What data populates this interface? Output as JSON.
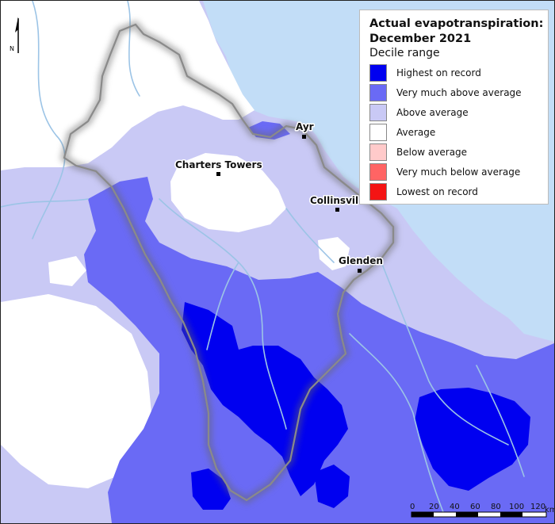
{
  "map": {
    "title_line1": "Actual evapotranspiration:",
    "title_line2": "December 2021",
    "subtitle": "Decile range"
  },
  "legend": {
    "items": [
      {
        "label": "Highest on record",
        "color": "#0000f0"
      },
      {
        "label": "Very much above average",
        "color": "#6a6af5"
      },
      {
        "label": "Above average",
        "color": "#c9c9f5"
      },
      {
        "label": "Average",
        "color": "#ffffff"
      },
      {
        "label": "Below average",
        "color": "#ffcaca"
      },
      {
        "label": "Very much below average",
        "color": "#ff6464"
      },
      {
        "label": "Lowest on record",
        "color": "#f41414"
      }
    ]
  },
  "places": {
    "ayr": "Ayr",
    "charters_towers": "Charters Towers",
    "collinsville": "Collinsvil",
    "glenden": "Glenden"
  },
  "north_arrow": {
    "label": "N"
  },
  "scale_bar": {
    "ticks": [
      "0",
      "20",
      "40",
      "60",
      "80",
      "100",
      "120"
    ],
    "unit": "km"
  },
  "colors": {
    "sea": "#c2ddf7",
    "river": "#9cc4e6",
    "boundary": "#8a8a8a"
  }
}
